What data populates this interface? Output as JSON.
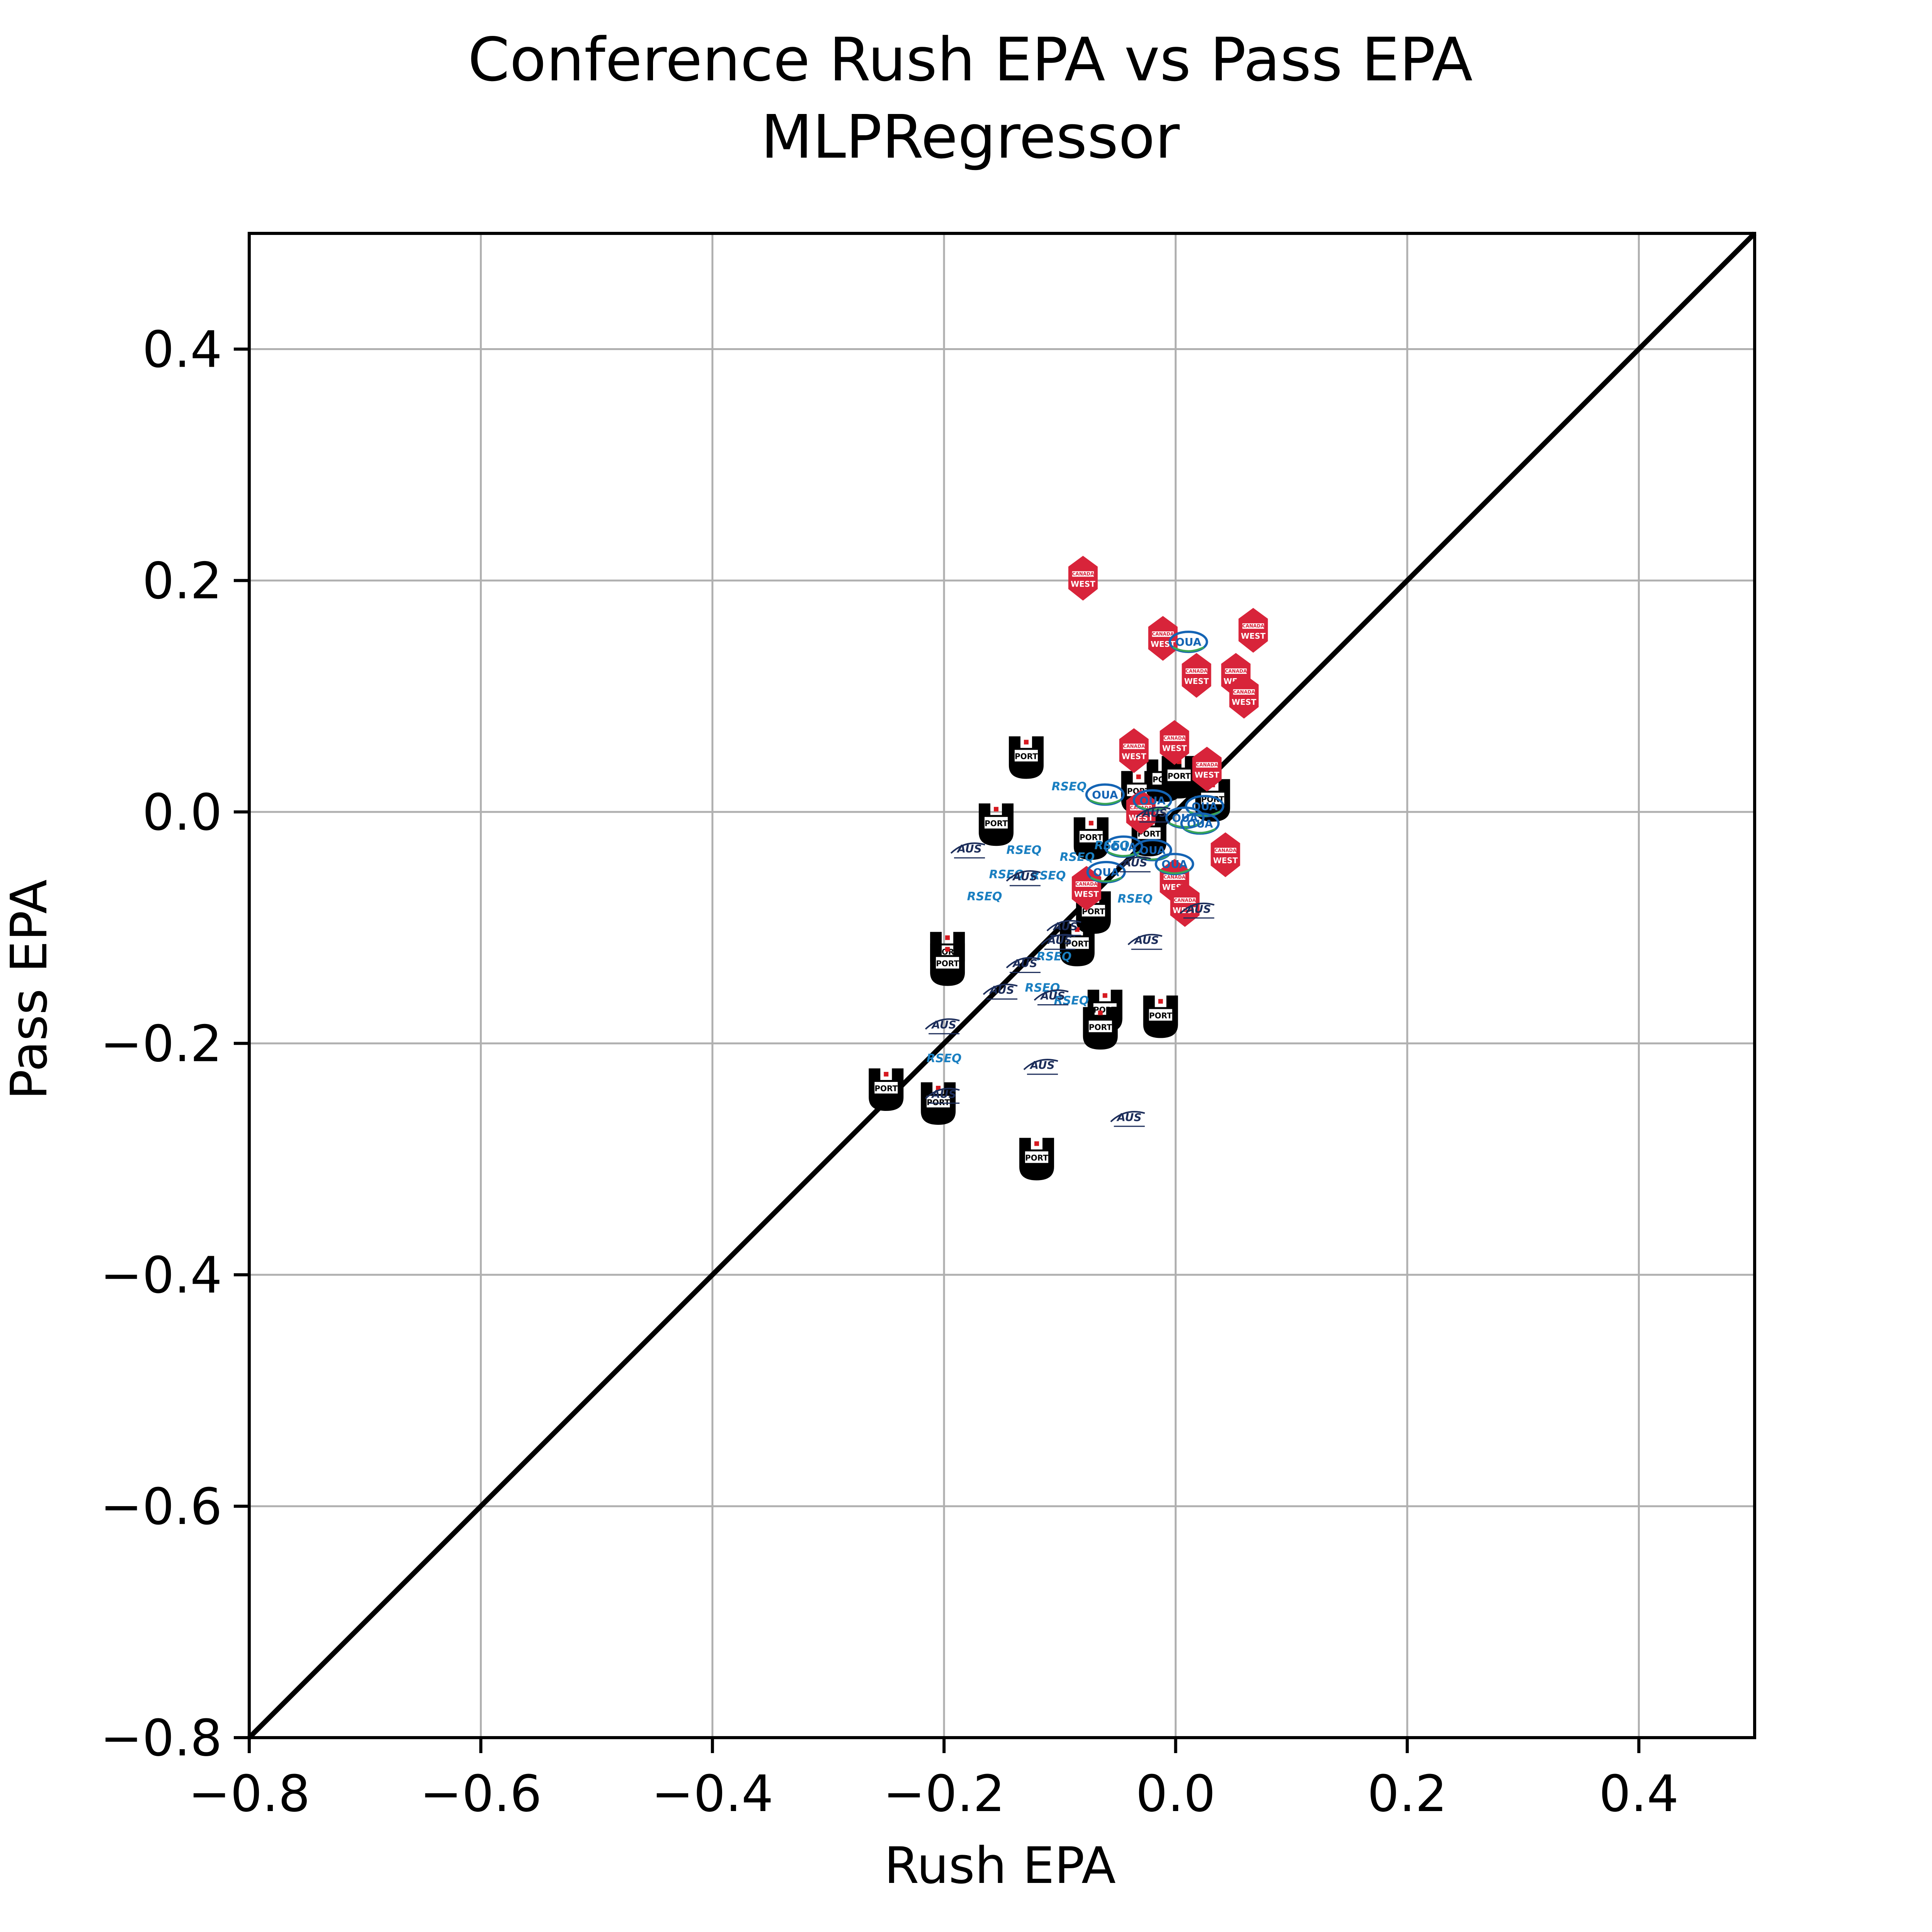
{
  "chart_data": {
    "type": "scatter",
    "title": "Conference Rush EPA vs Pass EPA",
    "subtitle": "MLPRegressor",
    "xlabel": "Rush EPA",
    "ylabel": "Pass EPA",
    "xlim": [
      -0.8,
      0.5
    ],
    "ylim": [
      -0.8,
      0.5
    ],
    "xticks": [
      -0.8,
      -0.6,
      -0.4,
      -0.2,
      0.0,
      0.2,
      0.4
    ],
    "yticks": [
      -0.8,
      -0.6,
      -0.4,
      -0.2,
      0.0,
      0.2,
      0.4
    ],
    "xtick_labels": [
      "−0.8",
      "−0.6",
      "−0.4",
      "−0.2",
      "0.0",
      "0.2",
      "0.4"
    ],
    "ytick_labels": [
      "−0.8",
      "−0.6",
      "−0.4",
      "−0.2",
      "0.0",
      "0.2",
      "0.4"
    ],
    "grid": true,
    "reference_line": {
      "x": [
        -0.8,
        0.5
      ],
      "y": [
        -0.8,
        0.5
      ],
      "color": "#000000"
    },
    "marker_styles": {
      "usports": {
        "label": "SPORTS",
        "color": "#000000",
        "accent": "#d71920"
      },
      "canadawest": {
        "label_top": "CANADA",
        "label_bottom": "WEST",
        "color": "#d8243a"
      },
      "oua": {
        "label": "OUA",
        "color": "#1464b4",
        "accent": "#3aa657"
      },
      "rseq": {
        "label": "RSEQ",
        "color": "#1a7fc1"
      },
      "aus": {
        "label": "AUS",
        "color": "#1c2d5a"
      }
    },
    "series": [
      {
        "marker": "usports",
        "points": [
          [
            -0.129,
            0.047
          ],
          [
            -0.155,
            -0.011
          ],
          [
            -0.073,
            -0.023
          ],
          [
            -0.032,
            0.017
          ],
          [
            -0.01,
            0.027
          ],
          [
            0.032,
            0.01
          ],
          [
            -0.023,
            -0.02
          ],
          [
            0.003,
            0.03
          ],
          [
            -0.071,
            -0.087
          ],
          [
            -0.085,
            -0.115
          ],
          [
            -0.197,
            -0.122
          ],
          [
            -0.197,
            -0.132
          ],
          [
            -0.061,
            -0.172
          ],
          [
            -0.065,
            -0.187
          ],
          [
            -0.013,
            -0.177
          ],
          [
            -0.25,
            -0.24
          ],
          [
            -0.205,
            -0.252
          ],
          [
            -0.12,
            -0.3
          ]
        ]
      },
      {
        "marker": "canadawest",
        "points": [
          [
            -0.08,
            0.202
          ],
          [
            -0.011,
            0.15
          ],
          [
            0.067,
            0.157
          ],
          [
            0.018,
            0.118
          ],
          [
            0.052,
            0.118
          ],
          [
            0.059,
            0.1
          ],
          [
            -0.036,
            0.053
          ],
          [
            -0.001,
            0.06
          ],
          [
            0.027,
            0.037
          ],
          [
            -0.03,
            0.0
          ],
          [
            0.043,
            -0.037
          ],
          [
            -0.001,
            -0.06
          ],
          [
            0.008,
            -0.08
          ],
          [
            -0.077,
            -0.066
          ]
        ]
      },
      {
        "marker": "oua",
        "points": [
          [
            0.011,
            0.147
          ],
          [
            -0.061,
            0.015
          ],
          [
            -0.02,
            0.01
          ],
          [
            0.025,
            0.005
          ],
          [
            0.008,
            -0.005
          ],
          [
            -0.045,
            -0.03
          ],
          [
            -0.02,
            -0.033
          ],
          [
            -0.06,
            -0.052
          ],
          [
            0.021,
            -0.01
          ],
          [
            -0.001,
            -0.045
          ]
        ]
      },
      {
        "marker": "rseq",
        "points": [
          [
            -0.092,
            0.022
          ],
          [
            -0.131,
            -0.033
          ],
          [
            -0.085,
            -0.039
          ],
          [
            -0.146,
            -0.054
          ],
          [
            -0.11,
            -0.055
          ],
          [
            -0.165,
            -0.073
          ],
          [
            -0.055,
            -0.029
          ],
          [
            -0.035,
            -0.075
          ],
          [
            -0.105,
            -0.125
          ],
          [
            -0.115,
            -0.152
          ],
          [
            -0.09,
            -0.163
          ],
          [
            -0.2,
            -0.213
          ]
        ]
      },
      {
        "marker": "aus",
        "points": [
          [
            -0.178,
            -0.033
          ],
          [
            -0.13,
            -0.057
          ],
          [
            -0.095,
            -0.1
          ],
          [
            -0.1,
            -0.112
          ],
          [
            -0.13,
            -0.132
          ],
          [
            -0.15,
            -0.155
          ],
          [
            -0.106,
            -0.16
          ],
          [
            -0.2,
            -0.185
          ],
          [
            -0.115,
            -0.22
          ],
          [
            -0.2,
            -0.245
          ],
          [
            -0.04,
            -0.265
          ],
          [
            -0.035,
            -0.045
          ],
          [
            0.02,
            -0.085
          ],
          [
            -0.025,
            -0.112
          ],
          [
            -0.018,
            -0.002
          ]
        ]
      }
    ]
  }
}
